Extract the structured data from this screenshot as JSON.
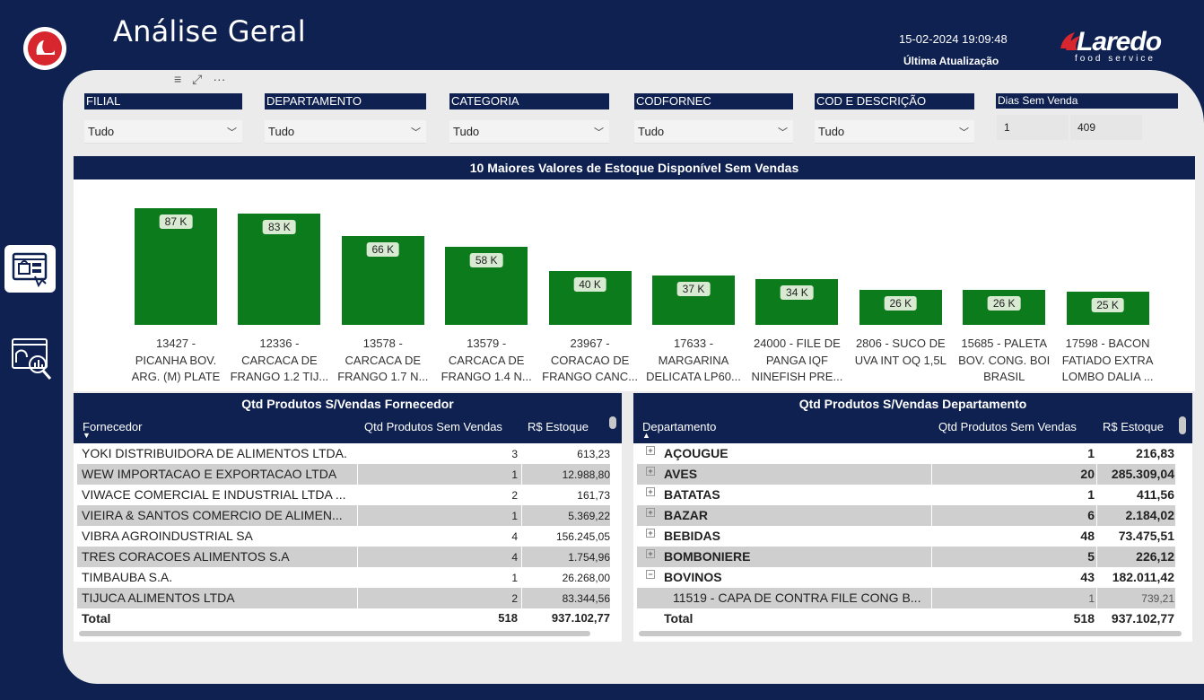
{
  "header": {
    "title": "Análise Geral",
    "update_time": "15-02-2024 19:09:48",
    "update_label": "Última Atualização",
    "brand_name": "Laredo",
    "brand_sub": "food service"
  },
  "slicers": [
    {
      "label": "FILIAL",
      "value": "Tudo"
    },
    {
      "label": "DEPARTAMENTO",
      "value": "Tudo"
    },
    {
      "label": "CATEGORIA",
      "value": "Tudo"
    },
    {
      "label": "CODFORNEC",
      "value": "Tudo"
    },
    {
      "label": "COD E DESCRIÇÃO",
      "value": "Tudo"
    }
  ],
  "dias": {
    "label": "Dias Sem Venda",
    "min": "1",
    "max": "409"
  },
  "chart_data": {
    "type": "bar",
    "title": "10 Maiores Valores de Estoque Disponível Sem Vendas",
    "categories": [
      [
        "13427 -",
        "PICANHA BOV.",
        "ARG. (M) PLATE"
      ],
      [
        "12336 -",
        "CARCACA DE",
        "FRANGO 1.2 TIJ..."
      ],
      [
        "13578 -",
        "CARCACA DE",
        "FRANGO 1.7 N..."
      ],
      [
        "13579 -",
        "CARCACA DE",
        "FRANGO 1.4 N..."
      ],
      [
        "23967 -",
        "CORACAO DE",
        "FRANGO CANC..."
      ],
      [
        "17633 -",
        "MARGARINA",
        "DELICATA LP60..."
      ],
      [
        "24000 - FILE DE",
        "PANGA IQF",
        "NINEFISH PRE..."
      ],
      [
        "2806 - SUCO DE",
        "UVA INT OQ 1,5L",
        ""
      ],
      [
        "15685 - PALETA",
        "BOV. CONG. BOI",
        "BRASIL"
      ],
      [
        "17598 - BACON",
        "FATIADO EXTRA",
        "LOMBO DALIA ..."
      ]
    ],
    "values": [
      87,
      83,
      66,
      58,
      40,
      37,
      34,
      26,
      26,
      25
    ],
    "data_labels": [
      "87 K",
      "83 K",
      "66 K",
      "58 K",
      "40 K",
      "37 K",
      "34 K",
      "26 K",
      "26 K",
      "25 K"
    ],
    "units": "K",
    "color": "#0b7b1b"
  },
  "fornecedor_table": {
    "title": "Qtd Produtos S/Vendas Fornecedor",
    "columns": [
      "Fornecedor",
      "Qtd Produtos Sem Vendas",
      "R$ Estoque"
    ],
    "rows": [
      [
        "YOKI DISTRIBUIDORA DE ALIMENTOS LTDA.",
        "3",
        "613,23"
      ],
      [
        "WEW IMPORTACAO E EXPORTACAO LTDA",
        "1",
        "12.988,80"
      ],
      [
        "VIWACE COMERCIAL E INDUSTRIAL LTDA ...",
        "2",
        "161,73"
      ],
      [
        "VIEIRA & SANTOS COMERCIO DE ALIMEN...",
        "1",
        "5.369,22"
      ],
      [
        "VIBRA AGROINDUSTRIAL SA",
        "4",
        "156.245,05"
      ],
      [
        "TRES CORACOES ALIMENTOS S.A",
        "4",
        "1.754,96"
      ],
      [
        "TIMBAUBA S.A.",
        "1",
        "26.268,00"
      ],
      [
        "TIJUCA ALIMENTOS LTDA",
        "2",
        "83.344,56"
      ]
    ],
    "total": [
      "Total",
      "518",
      "937.102,77"
    ]
  },
  "departamento_table": {
    "title": "Qtd Produtos S/Vendas Departamento",
    "columns": [
      "Departamento",
      "Qtd Produtos Sem Vendas",
      "R$ Estoque"
    ],
    "rows": [
      [
        "AÇOUGUE",
        "1",
        "216,83"
      ],
      [
        "AVES",
        "20",
        "285.309,04"
      ],
      [
        "BATATAS",
        "1",
        "411,56"
      ],
      [
        "BAZAR",
        "6",
        "2.184,02"
      ],
      [
        "BEBIDAS",
        "48",
        "73.475,51"
      ],
      [
        "BOMBONIERE",
        "5",
        "226,12"
      ],
      [
        "BOVINOS",
        "43",
        "182.011,42"
      ]
    ],
    "sub_row": [
      "11519 - CAPA DE CONTRA FILE CONG B...",
      "1",
      "739,21"
    ],
    "total": [
      "Total",
      "518",
      "937.102,77"
    ]
  }
}
